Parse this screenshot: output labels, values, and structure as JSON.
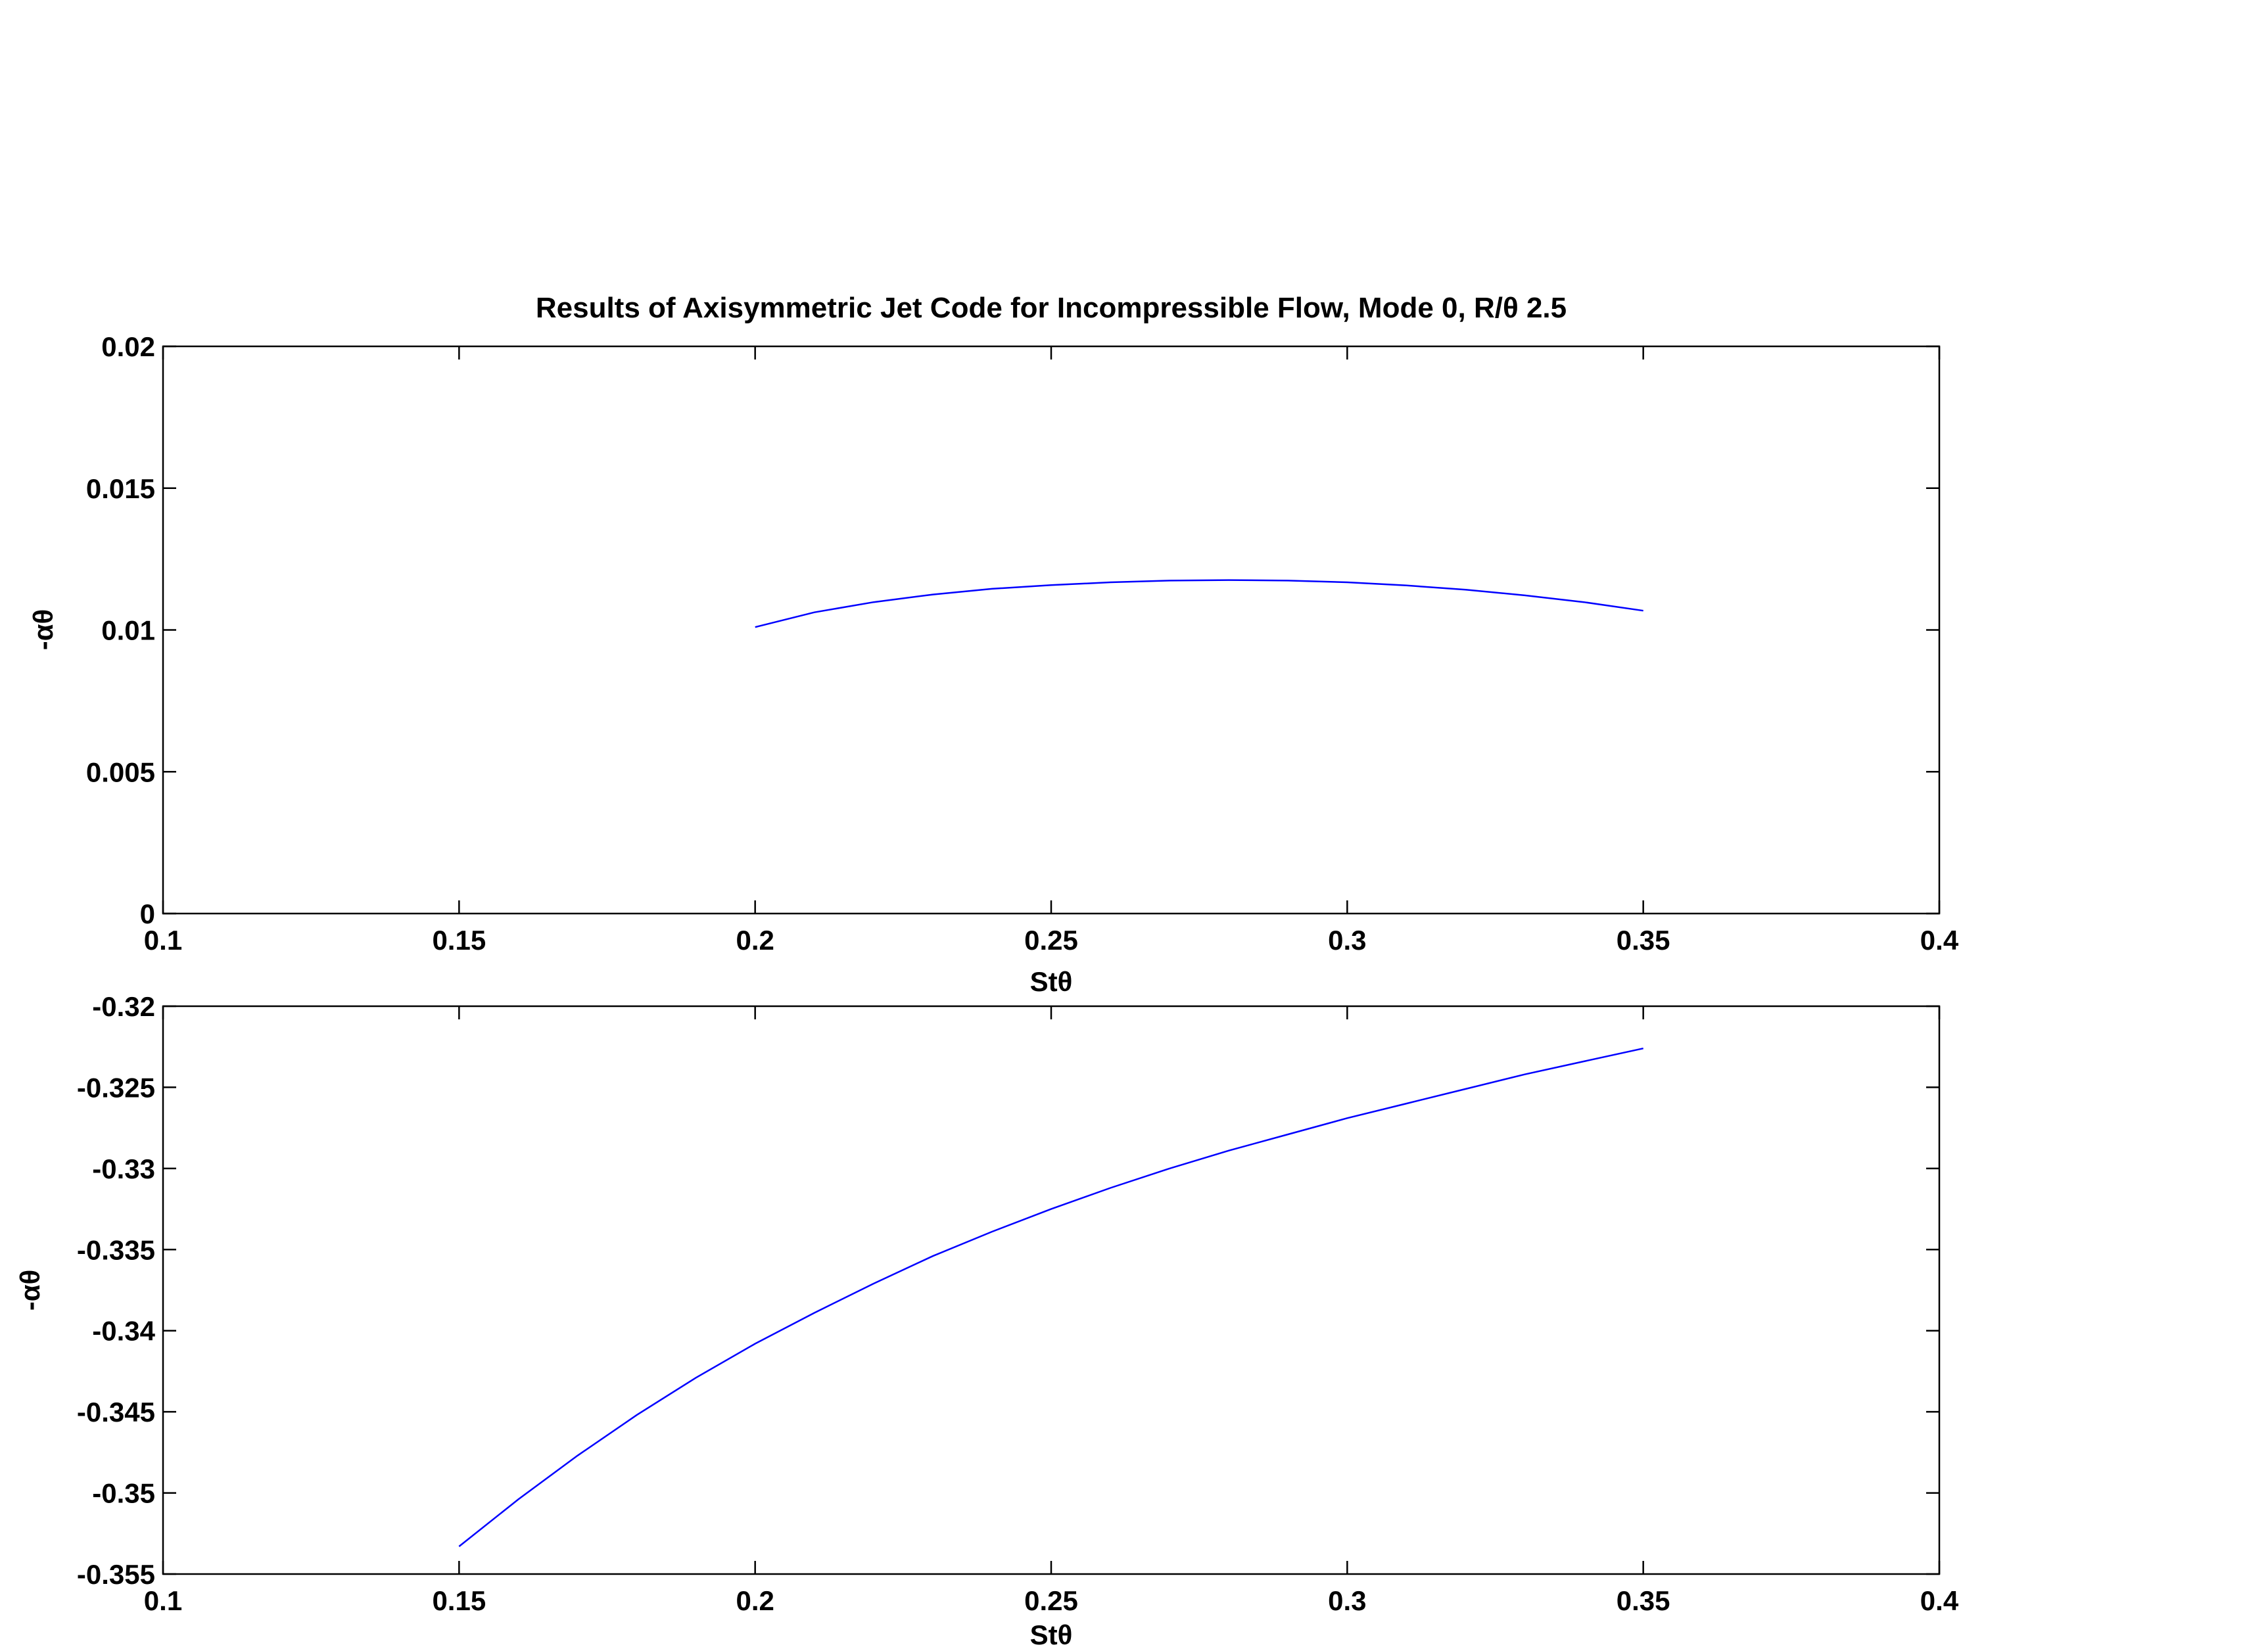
{
  "chart_data": [
    {
      "type": "line",
      "title": "Results of Axisymmetric Jet Code for Incompressible Flow, Mode 0, R/θ 2.5",
      "xlabel": "Stθ",
      "ylabel": "-αθ",
      "xlim": [
        0.1,
        0.4
      ],
      "ylim": [
        0,
        0.02
      ],
      "xticks": [
        0.1,
        0.15,
        0.2,
        0.25,
        0.3,
        0.35,
        0.4
      ],
      "xtick_labels": [
        "0.1",
        "0.15",
        "0.2",
        "0.25",
        "0.3",
        "0.35",
        "0.4"
      ],
      "yticks": [
        0,
        0.005,
        0.01,
        0.015,
        0.02
      ],
      "ytick_labels": [
        "0",
        "0.005",
        "0.01",
        "0.015",
        "0.02"
      ],
      "grid": false,
      "line_color": "#0000ff",
      "series": [
        {
          "x": [
            0.2,
            0.21,
            0.22,
            0.23,
            0.24,
            0.25,
            0.26,
            0.27,
            0.28,
            0.29,
            0.3,
            0.31,
            0.32,
            0.33,
            0.34,
            0.35
          ],
          "y": [
            0.0101,
            0.01062,
            0.01098,
            0.01125,
            0.01145,
            0.01158,
            0.01168,
            0.01174,
            0.01176,
            0.01174,
            0.01168,
            0.01157,
            0.01142,
            0.01122,
            0.01098,
            0.01068
          ]
        }
      ]
    },
    {
      "type": "line",
      "xlabel": "Stθ",
      "ylabel": "-αθ",
      "xlim": [
        0.1,
        0.4
      ],
      "ylim": [
        -0.355,
        -0.32
      ],
      "xticks": [
        0.1,
        0.15,
        0.2,
        0.25,
        0.3,
        0.35,
        0.4
      ],
      "xtick_labels": [
        "0.1",
        "0.15",
        "0.2",
        "0.25",
        "0.3",
        "0.35",
        "0.4"
      ],
      "yticks": [
        -0.355,
        -0.35,
        -0.345,
        -0.34,
        -0.335,
        -0.33,
        -0.325,
        -0.32
      ],
      "ytick_labels": [
        "-0.355",
        "-0.35",
        "-0.345",
        "-0.34",
        "-0.335",
        "-0.33",
        "-0.325",
        "-0.32"
      ],
      "grid": false,
      "line_color": "#0000ff",
      "series": [
        {
          "x": [
            0.15,
            0.16,
            0.17,
            0.18,
            0.19,
            0.2,
            0.21,
            0.22,
            0.23,
            0.24,
            0.25,
            0.26,
            0.27,
            0.28,
            0.29,
            0.3,
            0.31,
            0.32,
            0.33,
            0.34,
            0.35
          ],
          "y": [
            -0.3533,
            -0.3504,
            -0.3477,
            -0.3452,
            -0.3429,
            -0.3408,
            -0.3389,
            -0.3371,
            -0.3354,
            -0.3339,
            -0.3325,
            -0.3312,
            -0.33,
            -0.3289,
            -0.3279,
            -0.3269,
            -0.326,
            -0.3251,
            -0.3242,
            -0.3234,
            -0.3226
          ]
        }
      ]
    }
  ]
}
